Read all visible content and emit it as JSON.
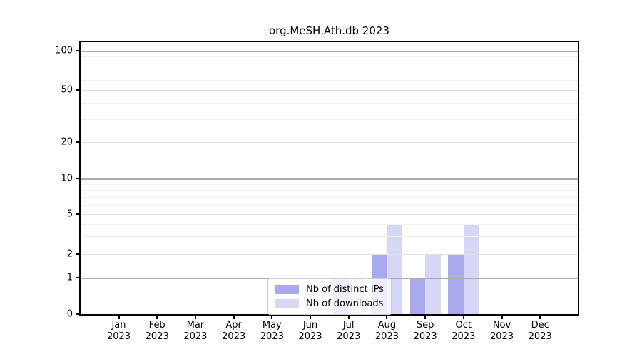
{
  "chart_data": {
    "type": "bar",
    "title": "org.MeSH.Ath.db 2023",
    "year": "2023",
    "categories": [
      "Jan",
      "Feb",
      "Mar",
      "Apr",
      "May",
      "Jun",
      "Jul",
      "Aug",
      "Sep",
      "Oct",
      "Nov",
      "Dec"
    ],
    "series": [
      {
        "name": "Nb of distinct IPs",
        "color": "#a9a9ee",
        "values": [
          0,
          0,
          0,
          0,
          0,
          0,
          1,
          2,
          1,
          2,
          0,
          0
        ]
      },
      {
        "name": "Nb of downloads",
        "color": "#d7d7f5",
        "values": [
          0,
          0,
          0,
          0,
          0,
          0,
          1,
          4,
          2,
          4,
          0,
          0
        ]
      }
    ],
    "y_axis": {
      "scale": "log-like",
      "ticks": [
        0,
        1,
        2,
        5,
        10,
        20,
        50,
        100
      ],
      "minor_gridlines": [
        3,
        4,
        6,
        7,
        8,
        9,
        30,
        40,
        60,
        70,
        80,
        90
      ]
    },
    "grid": true,
    "legend_position": "inside-bottom-center"
  }
}
